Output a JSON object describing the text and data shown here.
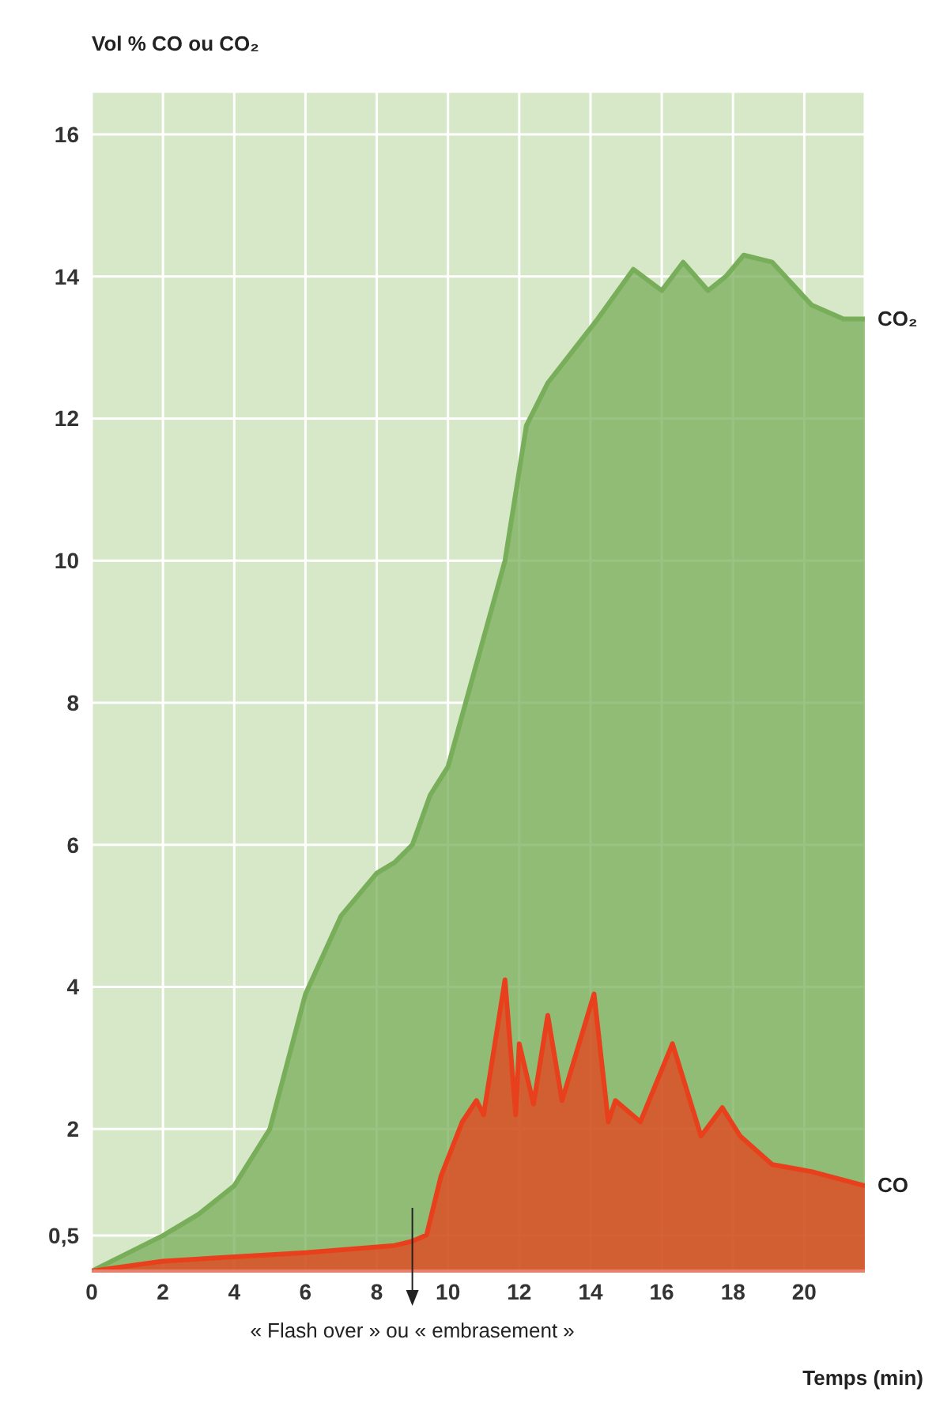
{
  "chart_data": {
    "type": "area",
    "ylabel": "Vol % CO ou CO₂",
    "xlabel": "Temps (min)",
    "xlim": [
      0,
      21.7
    ],
    "xticks": [
      0,
      2,
      4,
      6,
      8,
      10,
      12,
      14,
      16,
      18,
      20
    ],
    "ylim": [
      0,
      16.6
    ],
    "yticks": [
      {
        "value": 0.5,
        "label": "0,5"
      },
      2,
      4,
      6,
      8,
      10,
      12,
      14,
      16
    ],
    "grid": true,
    "legend": false,
    "series": [
      {
        "name": "CO₂",
        "color": "#78ad5a",
        "x": [
          0,
          2,
          3,
          4,
          5,
          6,
          7,
          8,
          8.5,
          9,
          9.5,
          10,
          11.6,
          12.2,
          12.8,
          14.2,
          15.2,
          16,
          16.6,
          17.3,
          17.8,
          18.3,
          19.1,
          20.2,
          21.1,
          21.7
        ],
        "values": [
          0,
          0.5,
          0.8,
          1.2,
          2,
          3.9,
          5,
          5.6,
          5.75,
          6,
          6.7,
          7.1,
          10,
          11.9,
          12.5,
          13.4,
          14.1,
          13.8,
          14.2,
          13.8,
          14,
          14.3,
          14.2,
          13.6,
          13.4,
          13.4
        ]
      },
      {
        "name": "CO",
        "color": "#e8401c",
        "x": [
          0,
          2,
          4,
          6,
          8.5,
          9,
          9.4,
          9.8,
          10.4,
          10.8,
          11,
          11.6,
          11.9,
          12,
          12.4,
          12.8,
          13.2,
          14.1,
          14.5,
          14.7,
          15.4,
          16.3,
          17.1,
          17.7,
          18.2,
          19.1,
          20.2,
          21.7
        ],
        "values": [
          0,
          0.14,
          0.2,
          0.26,
          0.36,
          0.42,
          0.51,
          1.33,
          2.1,
          2.4,
          2.2,
          4.1,
          2.2,
          3.2,
          2.35,
          3.6,
          2.4,
          3.9,
          2.1,
          2.4,
          2.1,
          3.2,
          1.9,
          2.3,
          1.9,
          1.5,
          1.4,
          1.2
        ]
      }
    ],
    "ref_lines": [
      {
        "axis": "x",
        "value": 9,
        "label": "« Flash over » ou « embrasement »"
      }
    ]
  }
}
